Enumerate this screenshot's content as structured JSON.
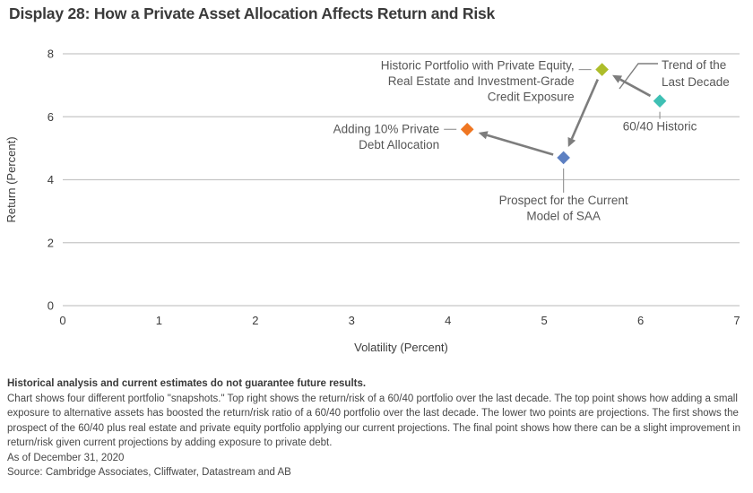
{
  "title": "Display 28: How a Private Asset Allocation Affects Return and Risk",
  "chart_data": {
    "type": "scatter",
    "title": "Display 28: How a Private Asset Allocation Affects Return and Risk",
    "xlabel": "Volatility (Percent)",
    "ylabel": "Return (Percent)",
    "xlim": [
      0,
      7
    ],
    "ylim": [
      0,
      8
    ],
    "xticks": [
      0,
      1,
      2,
      3,
      4,
      5,
      6,
      7
    ],
    "yticks": [
      0,
      2,
      4,
      6,
      8
    ],
    "grid": "horizontal",
    "legend": "none",
    "points": [
      {
        "id": "historic-private-portfolio",
        "label": [
          "Historic Portfolio with Private Equity,",
          "Real Estate and Investment-Grade",
          "Credit Exposure"
        ],
        "x": 5.6,
        "y": 7.5,
        "color": "#adbd2a",
        "label_pos": "left",
        "label_dy": 0
      },
      {
        "id": "60-40-historic",
        "label": [
          "60/40 Historic"
        ],
        "x": 6.2,
        "y": 6.5,
        "color": "#3fc0b4",
        "label_pos": "below",
        "label_dy": 33
      },
      {
        "id": "prospect-current-saa",
        "label": [
          "Prospect for the Current",
          "Model of SAA"
        ],
        "x": 5.2,
        "y": 4.7,
        "color": "#5d80c2",
        "label_pos": "below",
        "label_dy": 52
      },
      {
        "id": "adding-private-debt",
        "label": [
          "Adding 10% Private",
          "Debt Allocation"
        ],
        "x": 4.2,
        "y": 5.6,
        "color": "#ef7622",
        "label_pos": "left",
        "label_dy": 4
      }
    ],
    "arrows": [
      {
        "from": "60-40-historic",
        "to": "historic-private-portfolio"
      },
      {
        "from": "historic-private-portfolio",
        "to": "prospect-current-saa"
      },
      {
        "from": "prospect-current-saa",
        "to": "adding-private-debt"
      }
    ],
    "callout": {
      "lines": [
        "Trend of the",
        "Last Decade"
      ]
    }
  },
  "footnotes": {
    "bold": "Historical analysis and current estimates do not guarantee future results.",
    "body": "Chart shows four different portfolio \"snapshots.\" Top right shows the return/risk of a 60/40 portfolio over the last decade. The top point shows how adding a small exposure to alternative assets has boosted the return/risk ratio of a 60/40 portfolio over the last decade. The lower two points are projections. The first shows the prospect of the 60/40 plus real estate and private equity portfolio applying our current projections. The final point shows how there can be a slight improvement in return/risk given current projections by adding exposure to private debt.",
    "as_of": "As of December 31, 2020",
    "source": "Source: Cambridge Associates, Cliffwater, Datastream and AB"
  },
  "colors": {
    "grid": "#c6c6c6",
    "arrow": "#7d7d7d",
    "connector": "#9a9a9a",
    "title_text": "#3a3a3a",
    "tick_text": "#3c3c3c",
    "annotation_text": "#565656",
    "diamond_outline": "#ffffff"
  }
}
